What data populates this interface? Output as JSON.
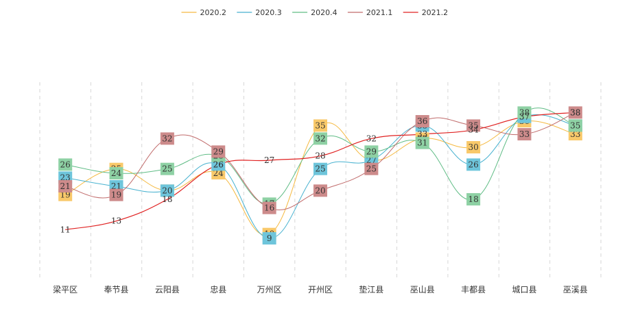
{
  "chart_data": {
    "type": "line",
    "categories": [
      "梁平区",
      "奉节县",
      "云阳县",
      "忠县",
      "万州区",
      "开州区",
      "垫江县",
      "巫山县",
      "丰都县",
      "城口县",
      "巫溪县"
    ],
    "series": [
      {
        "name": "2020.2",
        "color": "#f5b940",
        "label_bg": "#f9c96a",
        "values": [
          19,
          25,
          20,
          24,
          10,
          35,
          27,
          32,
          30,
          36,
          33
        ]
      },
      {
        "name": "2020.3",
        "color": "#46b1cf",
        "label_bg": "#6ec5db",
        "values": [
          23,
          21,
          20,
          26,
          9,
          25,
          27,
          35,
          26,
          37,
          35
        ]
      },
      {
        "name": "2020.4",
        "color": "#5fbc85",
        "label_bg": "#8ed1a4",
        "values": [
          26,
          24,
          25,
          28,
          17,
          32,
          29,
          31,
          18,
          38,
          35
        ]
      },
      {
        "name": "2021.1",
        "color": "#c06a6a",
        "label_bg": "#cd8b8b",
        "values": [
          21,
          19,
          32,
          29,
          16,
          20,
          25,
          36,
          35,
          33,
          38
        ]
      },
      {
        "name": "2021.2",
        "color": "#e02020",
        "label_bg": "none",
        "values": [
          11,
          13,
          18,
          26,
          27,
          28,
          32,
          33,
          34,
          37,
          38
        ]
      }
    ],
    "ylim": [
      0,
      45
    ],
    "grid": "vertical-dashed",
    "legend_position": "top-center",
    "title": "",
    "xlabel": "",
    "ylabel": ""
  }
}
